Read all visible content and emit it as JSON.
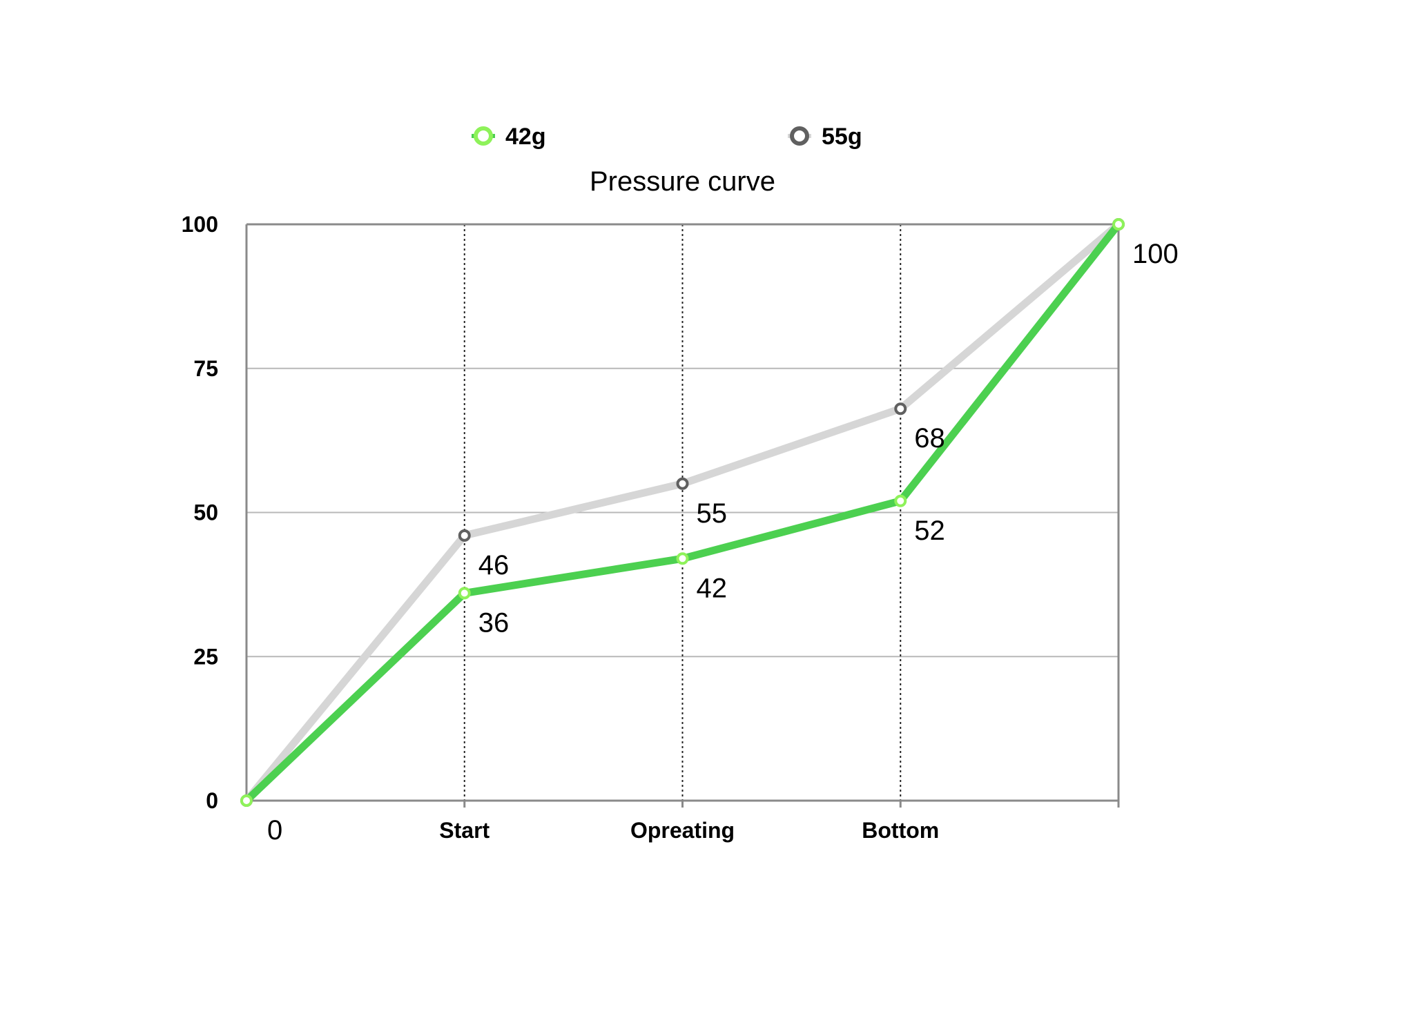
{
  "chart_data": {
    "type": "line",
    "title": "Pressure curve",
    "categories": [
      "0",
      "Start",
      "Opreating",
      "Bottom",
      ""
    ],
    "ylim": [
      0,
      100
    ],
    "yticks": [
      "0",
      "25",
      "50",
      "75",
      "100"
    ],
    "grid": true,
    "legend_position": "top",
    "series": [
      {
        "name": "42g",
        "values": [
          0,
          36,
          42,
          52,
          100
        ],
        "labels": [
          "",
          "36",
          "42",
          "52",
          "100"
        ],
        "color": "#4cd050",
        "marker_color": "#8ef25a"
      },
      {
        "name": "55g",
        "values": [
          0,
          46,
          55,
          68,
          100
        ],
        "labels": [
          "",
          "46",
          "55",
          "68",
          ""
        ],
        "color": "#d6d6d6",
        "marker_color": "#606060"
      }
    ]
  }
}
